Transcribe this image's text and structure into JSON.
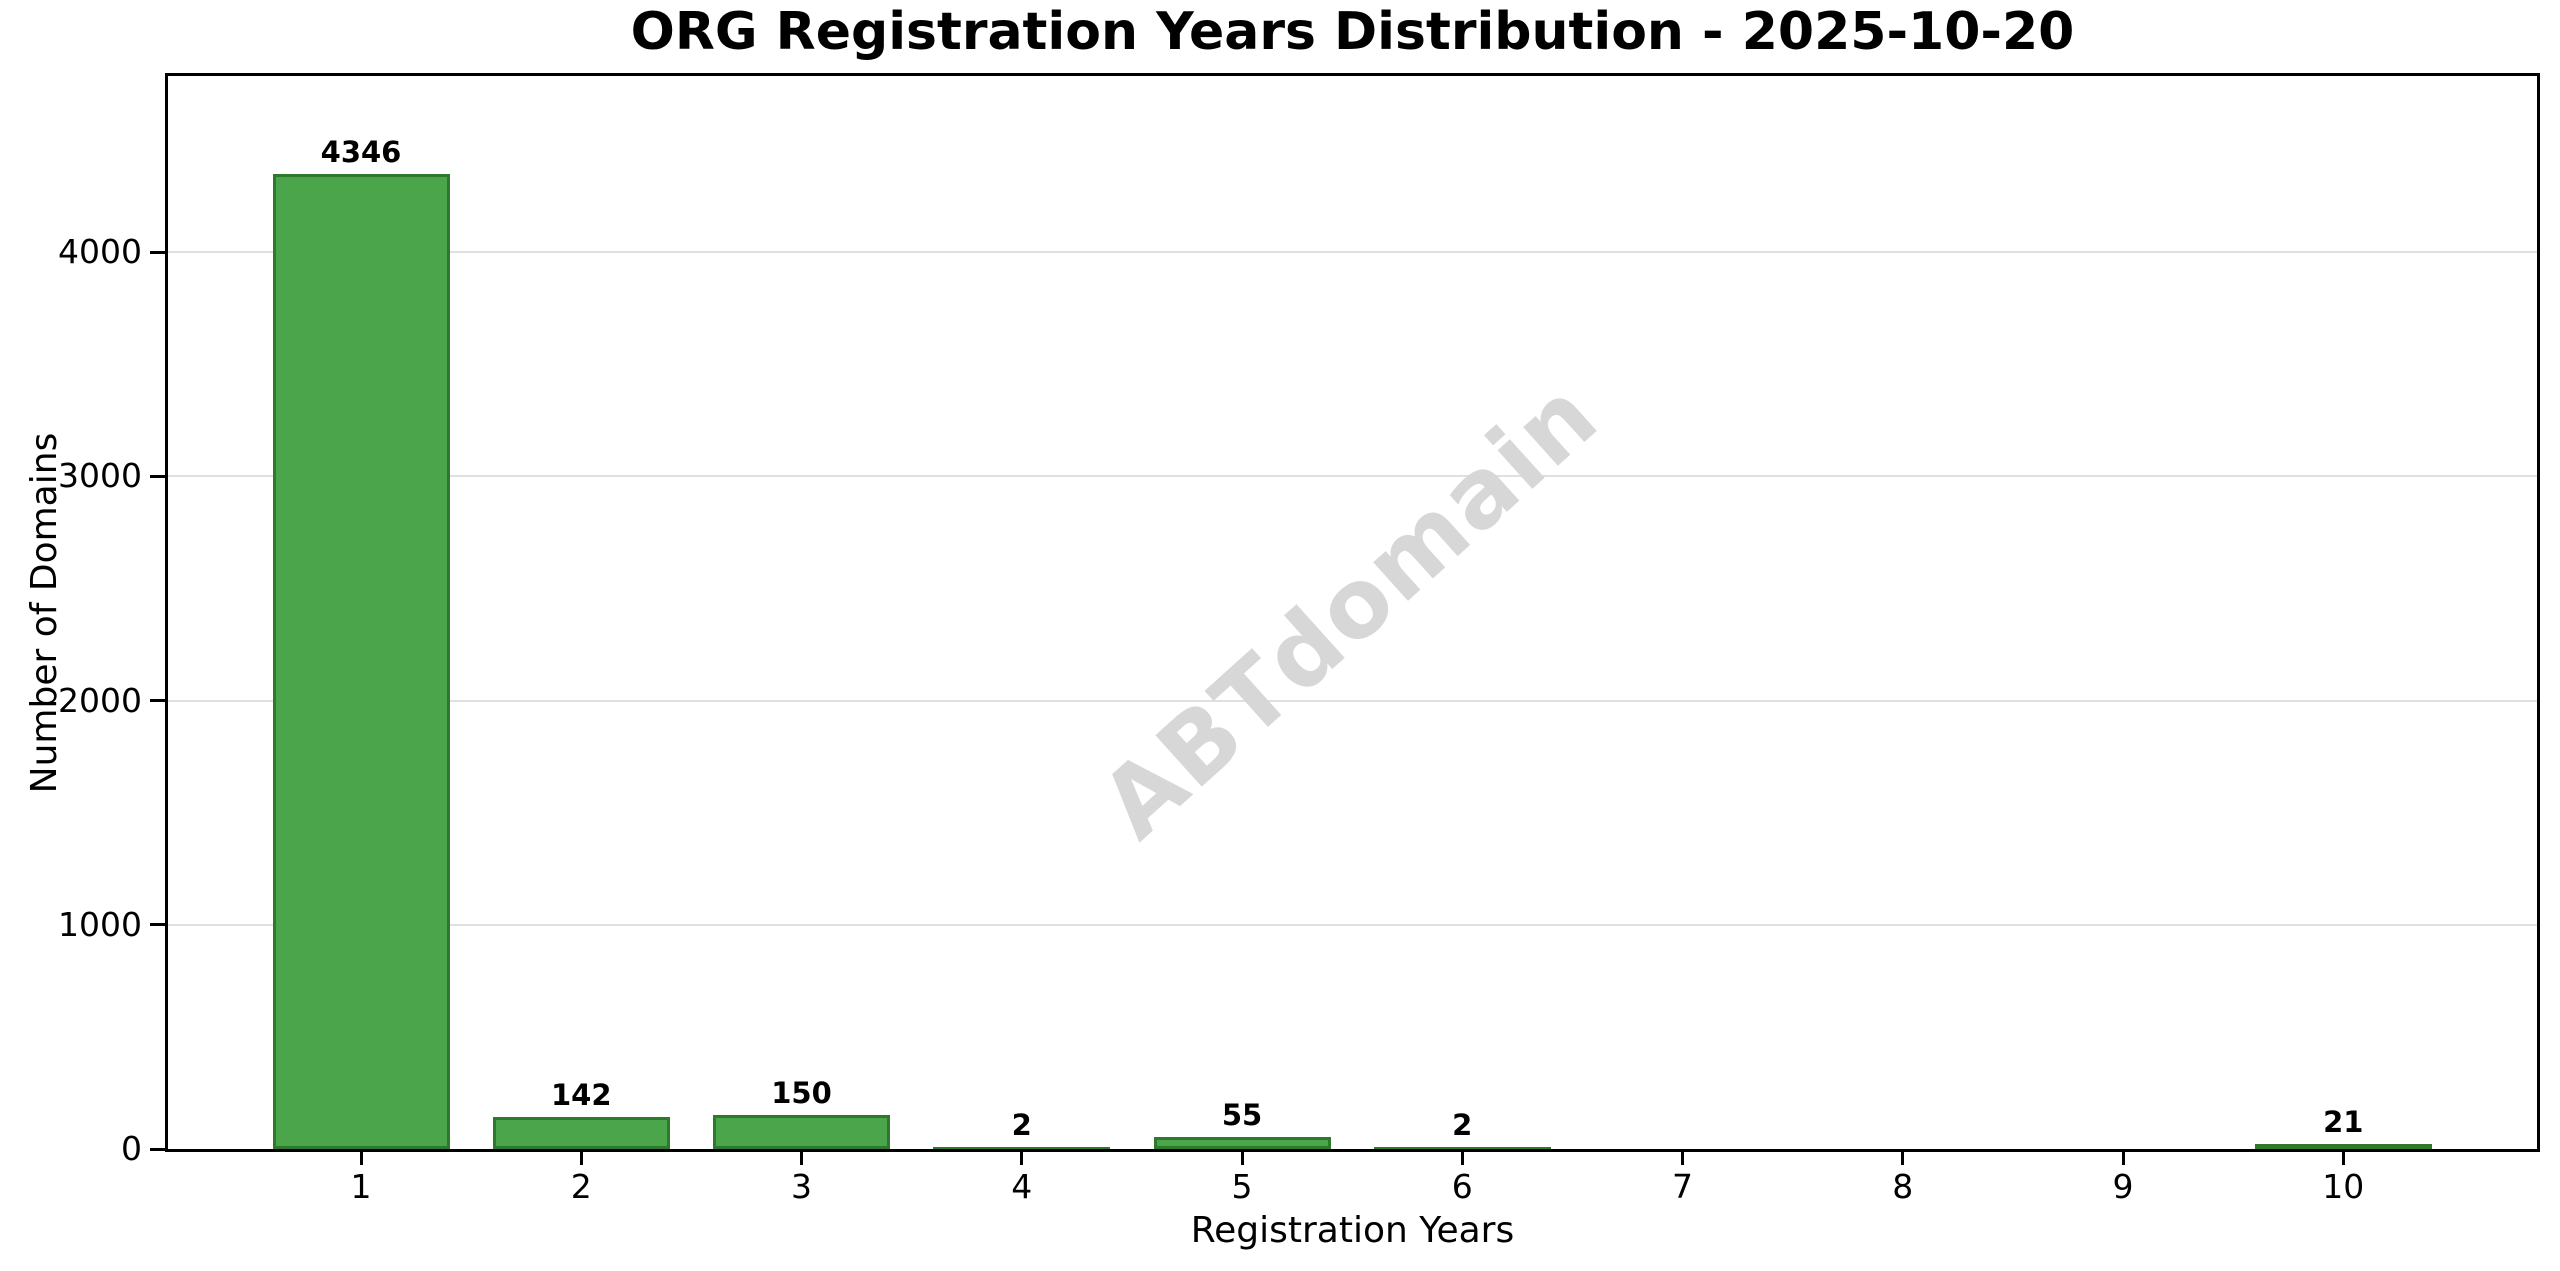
{
  "chart_data": {
    "type": "bar",
    "title": "ORG Registration Years Distribution - 2025-10-20",
    "xlabel": "Registration Years",
    "ylabel": "Number of Domains",
    "categories": [
      "1",
      "2",
      "3",
      "4",
      "5",
      "6",
      "7",
      "8",
      "9",
      "10"
    ],
    "values": [
      4346,
      142,
      150,
      2,
      55,
      2,
      0,
      0,
      0,
      21
    ],
    "bar_labels": [
      "4346",
      "142",
      "150",
      "2",
      "55",
      "2",
      "",
      "",
      "",
      "21"
    ],
    "yticks": [
      0,
      1000,
      2000,
      3000,
      4000
    ],
    "ytick_labels": [
      "0",
      "1000",
      "2000",
      "3000",
      "4000"
    ],
    "ylim": [
      0,
      4785
    ],
    "xlim_categories": [
      1,
      10
    ],
    "grid": "horizontal",
    "legend": null,
    "watermark": "ABTdomain",
    "colors": {
      "bar_fill": "#4ba54b",
      "bar_edge": "#2d7a2d",
      "grid": "#e0e0e0",
      "axis": "#000000",
      "text": "#000000",
      "watermark": "#d7d7d7",
      "background": "#ffffff"
    }
  }
}
